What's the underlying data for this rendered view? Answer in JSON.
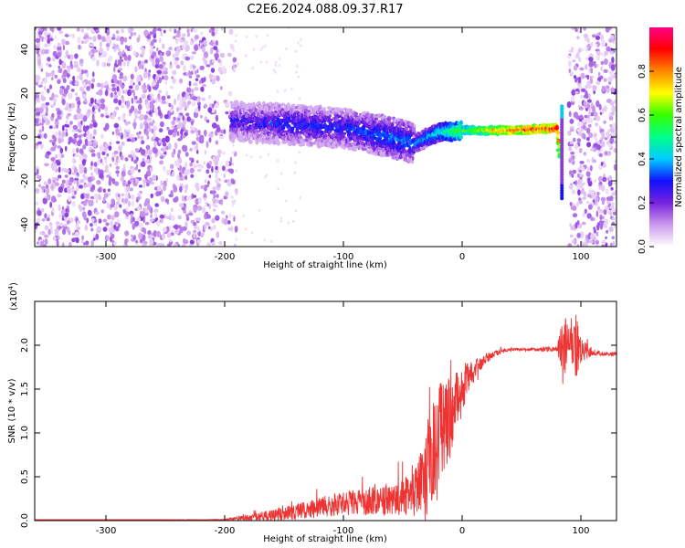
{
  "title": "C2E6.2024.088.09.37.R17",
  "colors": {
    "snr_line": "#ee3333",
    "axis": "#000000",
    "spectrogram_noise": "#7a33dd",
    "spectrogram_signal": "#ff2222"
  },
  "chart_data": [
    {
      "type": "heatmap",
      "name": "spectrogram",
      "xlabel": "Height of straight line (km)",
      "ylabel": "Frequency (Hz)",
      "xlim": [
        -360,
        130
      ],
      "ylim": [
        -50,
        50
      ],
      "x_ticks": [
        "-300",
        "-200",
        "-100",
        "0",
        "100"
      ],
      "x_tick_values": [
        -300,
        -200,
        -100,
        0,
        100
      ],
      "y_ticks": [
        "-40",
        "-20",
        "0",
        "20",
        "40"
      ],
      "y_tick_values": [
        -40,
        -20,
        0,
        20,
        40
      ],
      "colorbar": {
        "label": "Normalized spectral amplitude",
        "range": [
          0,
          1
        ],
        "ticks": [
          "0.0",
          "0.2",
          "0.4",
          "0.6",
          "0.8"
        ],
        "tick_values": [
          0,
          0.2,
          0.4,
          0.6,
          0.8
        ],
        "colormap": [
          "#ffffff",
          "#cc99ee",
          "#7722dd",
          "#1111ff",
          "#00ccff",
          "#00ff88",
          "#33ff00",
          "#ffff00",
          "#ff8800",
          "#ff0000",
          "#ff0088"
        ]
      },
      "noise_regions_km": [
        [
          -360,
          -190
        ],
        [
          90,
          130
        ]
      ],
      "signal_track": {
        "height_km": [
          -195,
          -150,
          -100,
          -60,
          -40,
          -20,
          0,
          40,
          80,
          85
        ],
        "frequency_hz": [
          7,
          6,
          4,
          0,
          -3,
          2,
          3,
          3,
          4,
          -25
        ],
        "amplitude": [
          0.25,
          0.3,
          0.3,
          0.35,
          0.35,
          0.45,
          0.6,
          0.85,
          0.9,
          0.3
        ]
      }
    },
    {
      "type": "line",
      "name": "snr",
      "xlabel": "Height of straight line (km)",
      "ylabel": "SNR (10 * v/v)",
      "y_multiplier": "(x10",
      "y_multiplier_exp": "4",
      "y_multiplier_close": ")",
      "xlim": [
        -360,
        130
      ],
      "ylim": [
        0,
        2.5
      ],
      "x_ticks": [
        "-300",
        "-200",
        "-100",
        "0",
        "100"
      ],
      "x_tick_values": [
        -300,
        -200,
        -100,
        0,
        100
      ],
      "y_ticks": [
        "0.0",
        "0.5",
        "1.0",
        "1.5",
        "2.0"
      ],
      "y_tick_values": [
        0,
        0.5,
        1.0,
        1.5,
        2.0
      ],
      "series": [
        {
          "x": [
            -360,
            -300,
            -250,
            -200,
            -180,
            -150,
            -120,
            -100,
            -80,
            -60,
            -40,
            -30,
            -20,
            -10,
            0,
            10,
            20,
            30,
            40,
            60,
            80,
            85,
            90,
            95,
            100,
            110,
            120,
            130
          ],
          "y": [
            0.01,
            0.01,
            0.01,
            0.01,
            0.03,
            0.08,
            0.15,
            0.2,
            0.22,
            0.25,
            0.3,
            0.6,
            1.0,
            1.2,
            1.5,
            1.7,
            1.85,
            1.92,
            1.95,
            1.95,
            1.96,
            2.0,
            2.05,
            1.95,
            1.95,
            1.92,
            1.9,
            1.9
          ],
          "noise": [
            0,
            0,
            0,
            0.005,
            0.04,
            0.08,
            0.12,
            0.14,
            0.16,
            0.18,
            0.25,
            0.55,
            0.65,
            0.45,
            0.3,
            0.12,
            0.06,
            0.03,
            0.02,
            0.02,
            0.03,
            0.35,
            0.2,
            0.45,
            0.15,
            0.04,
            0.02,
            0.02
          ]
        }
      ]
    }
  ]
}
